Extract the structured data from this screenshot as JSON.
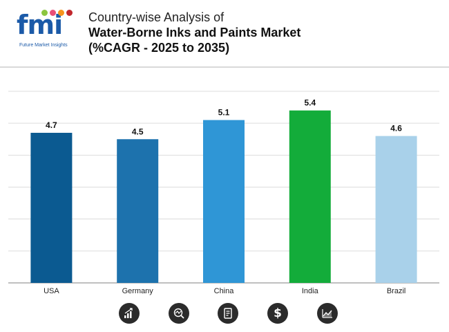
{
  "logo": {
    "letters": "fmi",
    "tagline": "Future Market Insights",
    "dot_colors": [
      "#8cc63f",
      "#e94e77",
      "#f7941d",
      "#c1272d"
    ]
  },
  "header": {
    "title_line1": "Country-wise Analysis of",
    "title_line2": "Water-Borne Inks and Paints Market",
    "title_line3": "(%CAGR - 2025 to 2035)"
  },
  "chart_data": {
    "type": "bar",
    "title": "Country-wise Analysis of Water-Borne Inks and Paints Market (%CAGR - 2025 to 2035)",
    "categories": [
      "USA",
      "Germany",
      "China",
      "India",
      "Brazil"
    ],
    "values": [
      4.7,
      4.5,
      5.1,
      5.4,
      4.6
    ],
    "labels": [
      "4.7",
      "4.5",
      "5.1",
      "5.4",
      "4.6"
    ],
    "colors": [
      "#0b5a91",
      "#1d72ad",
      "#2f96d6",
      "#13ac3a",
      "#a9d1ea"
    ],
    "xlabel": "",
    "ylabel": "",
    "ylim": [
      0,
      6
    ],
    "grid": true,
    "gridline_count": 7,
    "legend": "none"
  },
  "footer": {
    "icons": [
      "bar-growth-icon",
      "pie-analysis-icon",
      "document-icon",
      "dollar-icon",
      "line-chart-icon"
    ],
    "dollar_glyph": "$"
  }
}
